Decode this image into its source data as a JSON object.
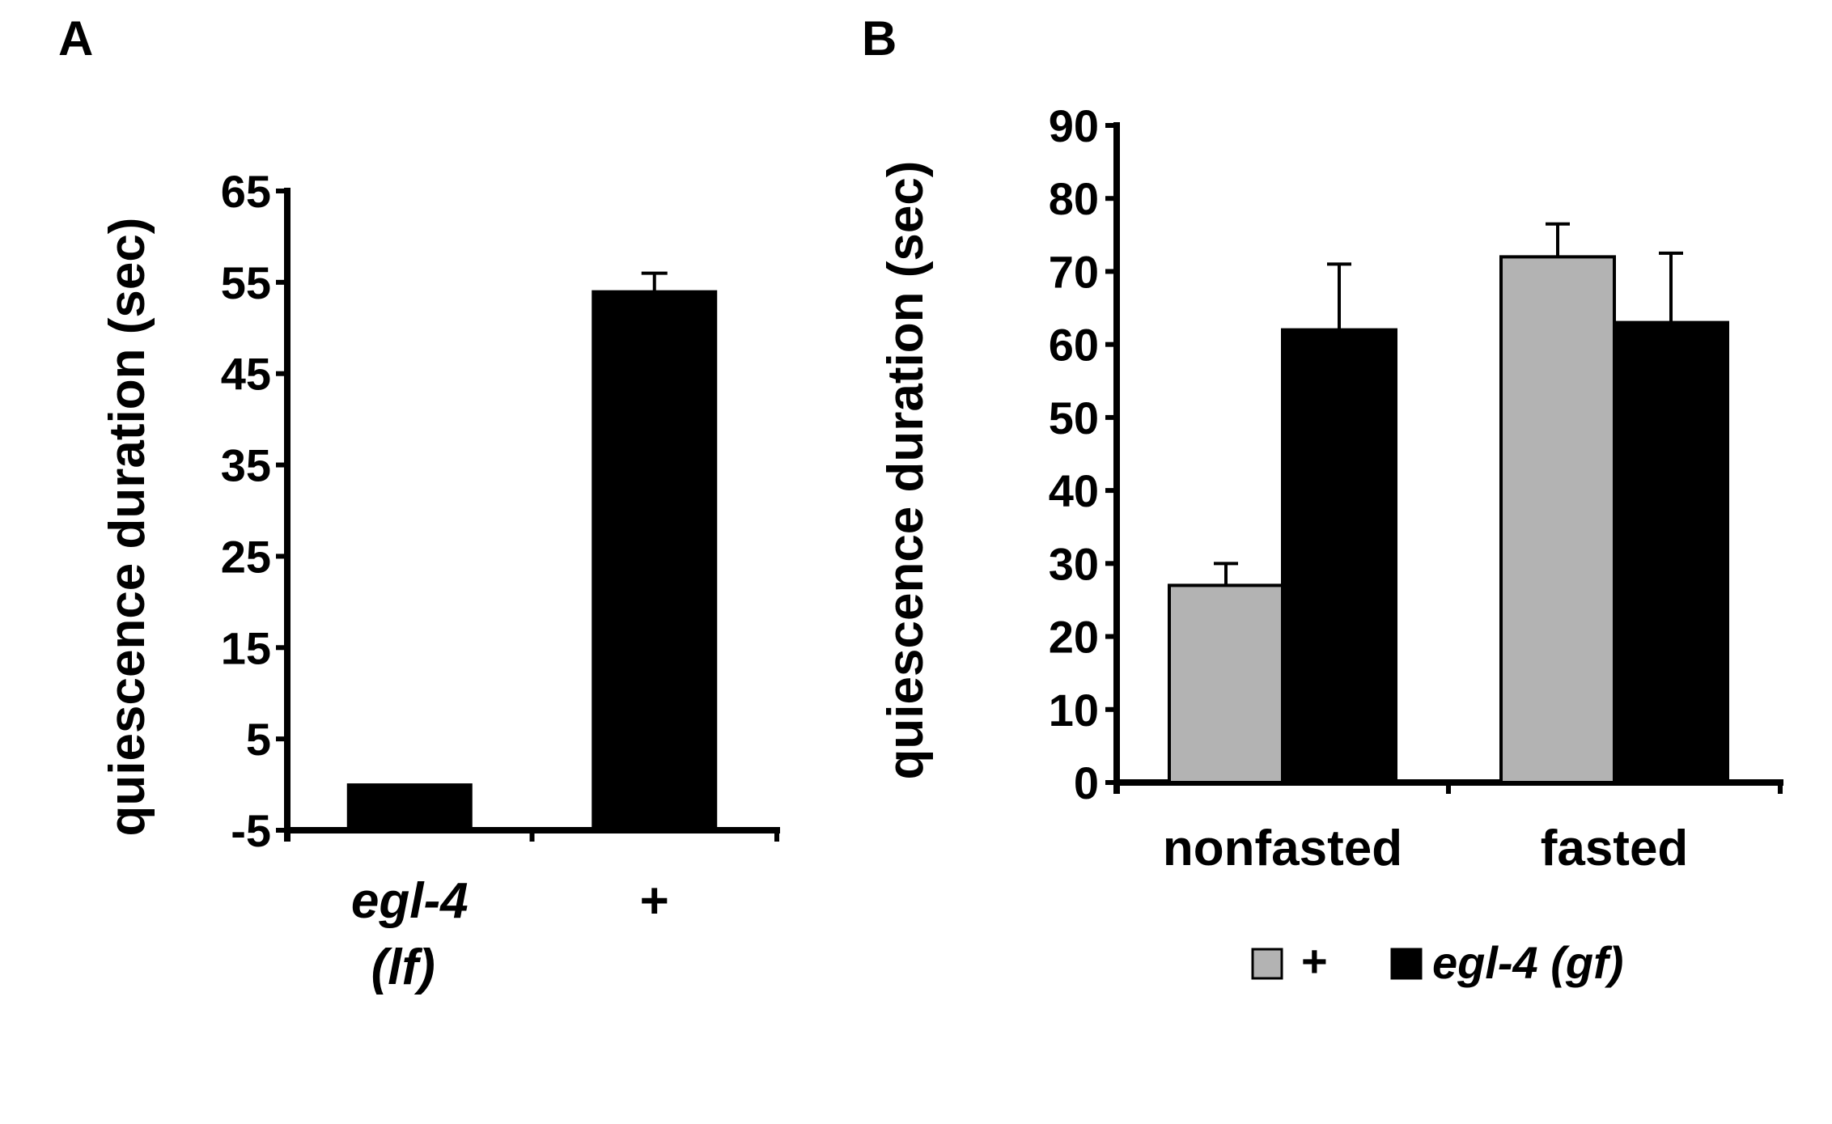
{
  "panels": {
    "a": {
      "letter": "A"
    },
    "b": {
      "letter": "B"
    }
  },
  "chart_data": [
    {
      "type": "bar",
      "panel": "A",
      "ylabel": "quiescence duration (sec)",
      "ylim": [
        -5,
        65
      ],
      "yticks": [
        "65",
        "55",
        "45",
        "35",
        "25",
        "15",
        "5",
        "-5"
      ],
      "ytick_values": [
        65,
        55,
        45,
        35,
        25,
        15,
        5,
        -5
      ],
      "categories": [
        {
          "line1": "egl-4",
          "line2": "(lf)",
          "italic": true
        },
        {
          "line1": "+",
          "line2": "",
          "italic": false
        }
      ],
      "values": [
        0,
        54
      ],
      "errors": [
        0,
        2
      ],
      "bar_color": "#000000"
    },
    {
      "type": "bar",
      "panel": "B",
      "ylabel": "quiescence duration (sec)",
      "ylim": [
        0,
        90
      ],
      "yticks": [
        "90",
        "80",
        "70",
        "60",
        "50",
        "40",
        "30",
        "20",
        "10",
        "0"
      ],
      "ytick_values": [
        90,
        80,
        70,
        60,
        50,
        40,
        30,
        20,
        10,
        0
      ],
      "categories": [
        "nonfasted",
        "fasted"
      ],
      "series": [
        {
          "name": "+",
          "color": "#b3b3b3",
          "values": [
            27,
            72
          ],
          "errors": [
            3,
            4.5
          ]
        },
        {
          "name": "egl-4 (gf)",
          "color": "#000000",
          "values": [
            62,
            63
          ],
          "errors": [
            9,
            9.5
          ]
        }
      ],
      "legend": "bottom"
    }
  ]
}
